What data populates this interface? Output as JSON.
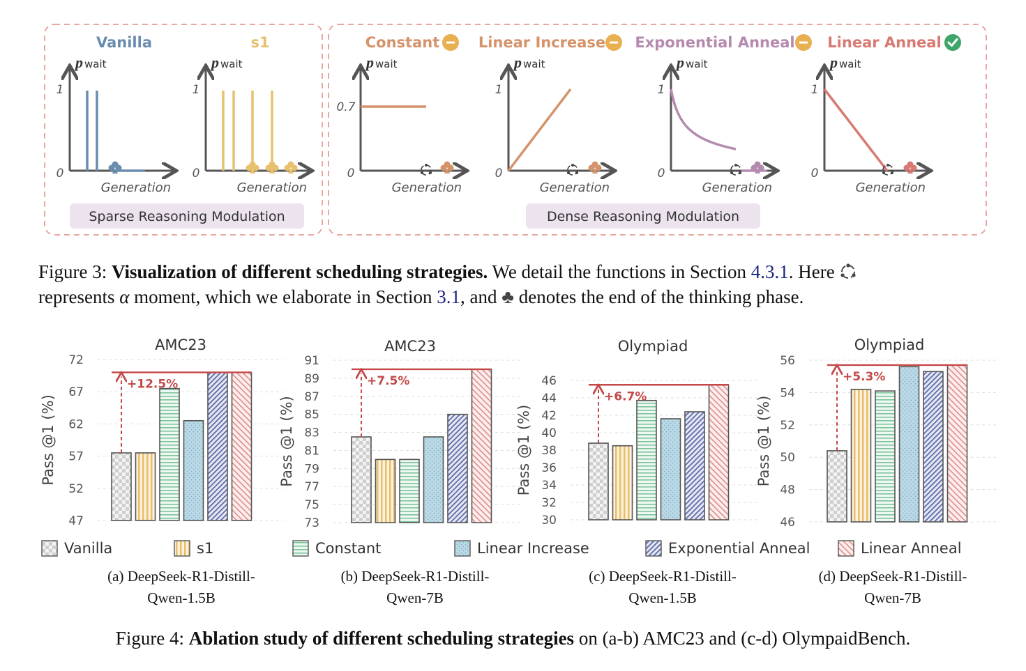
{
  "figure3": {
    "caption_label": "Figure 3:",
    "caption_bold": "Visualization of different scheduling strategies.",
    "caption_part1": "We detail the functions in Section",
    "ref1": "4.3.1",
    "caption_part2": ". Here",
    "caption_part3": "represents",
    "alpha": "α",
    "caption_part4": "moment, which we elaborate in Section",
    "ref2": "3.1",
    "caption_part5": ", and",
    "club": "♣",
    "caption_part6": "denotes the end of the thinking phase.",
    "sparse_label": "Sparse Reasoning Modulation",
    "dense_label": "Dense Reasoning Modulation",
    "axis_y_p": "p",
    "axis_y_sub": "wait",
    "axis_x": "Generation",
    "tick_one": "1",
    "tick_zero": "0",
    "tick_constant": "0.7",
    "panels": {
      "vanilla": {
        "title": "Vanilla",
        "color": "#6a8cae"
      },
      "s1": {
        "title": "s1",
        "color": "#e8c16e"
      },
      "constant": {
        "title": "Constant",
        "color": "#d4936a"
      },
      "linear_increase": {
        "title": "Linear Increase",
        "color": "#d4936a"
      },
      "exponential_anneal": {
        "title": "Exponential Anneal",
        "color": "#b48bae"
      },
      "linear_anneal": {
        "title": "Linear Anneal",
        "color": "#d67a73"
      }
    }
  },
  "chart_data": [
    {
      "type": "bar",
      "title": "AMC23",
      "ylabel": "Pass @1 (%)",
      "ylim": [
        47,
        72
      ],
      "yticks": [
        "47",
        "52",
        "57",
        "62",
        "67",
        "72"
      ],
      "categories": [
        "Vanilla",
        "s1",
        "Constant",
        "Linear Increase",
        "Exponential Anneal",
        "Linear Anneal"
      ],
      "values": [
        57.5,
        57.5,
        67.5,
        62.5,
        70.0,
        70.0
      ],
      "annotation": "+12.5%",
      "subcaption": [
        "(a) DeepSeek-R1-Distill-",
        "Qwen-1.5B"
      ]
    },
    {
      "type": "bar",
      "title": "AMC23",
      "ylabel": "Pass @1 (%)",
      "ylim": [
        73,
        91
      ],
      "yticks": [
        "73",
        "75",
        "77",
        "79",
        "81",
        "83",
        "85",
        "87",
        "89",
        "91"
      ],
      "categories": [
        "Vanilla",
        "s1",
        "Constant",
        "Linear Increase",
        "Exponential Anneal",
        "Linear Anneal"
      ],
      "values": [
        82.5,
        80.0,
        80.0,
        82.5,
        85.0,
        90.0
      ],
      "annotation": "+7.5%",
      "subcaption": [
        "(b) DeepSeek-R1-Distill-",
        "Qwen-7B"
      ]
    },
    {
      "type": "bar",
      "title": "Olympiad",
      "ylabel": "Pass @1 (%)",
      "ylim": [
        30,
        46
      ],
      "yticks": [
        "30",
        "32",
        "34",
        "36",
        "38",
        "40",
        "42",
        "44",
        "46"
      ],
      "categories": [
        "Vanilla",
        "s1",
        "Constant",
        "Linear Increase",
        "Exponential Anneal",
        "Linear Anneal"
      ],
      "values": [
        38.8,
        38.5,
        43.7,
        41.6,
        42.4,
        45.5
      ],
      "annotation": "+6.7%",
      "subcaption": [
        "(c) DeepSeek-R1-Distill-",
        "Qwen-1.5B"
      ]
    },
    {
      "type": "bar",
      "title": "Olympiad",
      "ylabel": "Pass @1 (%)",
      "ylim": [
        46,
        56
      ],
      "yticks": [
        "46",
        "48",
        "50",
        "52",
        "54",
        "56"
      ],
      "categories": [
        "Vanilla",
        "s1",
        "Constant",
        "Linear Increase",
        "Exponential Anneal",
        "Linear Anneal"
      ],
      "values": [
        50.4,
        54.2,
        54.1,
        55.6,
        55.3,
        55.7
      ],
      "annotation": "+5.3%",
      "subcaption": [
        "(d) DeepSeek-R1-Distill-",
        "Qwen-7B"
      ]
    }
  ],
  "legend": [
    "Vanilla",
    "s1",
    "Constant",
    "Linear Increase",
    "Exponential Anneal",
    "Linear Anneal"
  ],
  "figure4": {
    "caption_label": "Figure 4:",
    "caption_bold": "Ablation study of different scheduling strategies",
    "caption_rest": "on (a-b) AMC23 and (c-d) OlympaidBench."
  }
}
